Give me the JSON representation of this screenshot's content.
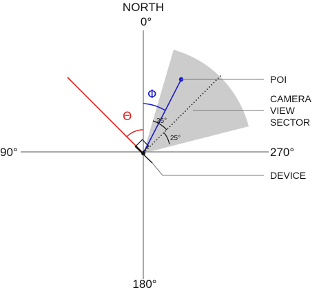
{
  "labels": {
    "north": "NORTH",
    "deg0": "0°",
    "deg90": "90°",
    "deg180": "180°",
    "deg270": "270°",
    "poi": "POI",
    "camera_view_sector": [
      "CAMERA",
      "VIEW",
      "SECTOR"
    ],
    "device": "DEVICE",
    "theta": "Θ",
    "phi": "Φ",
    "angle_a": "25°",
    "angle_b": "25°"
  },
  "colors": {
    "axis": "#8c8c8c",
    "sector": "#cccccc",
    "theta": "#e02020",
    "phi": "#1a1acc",
    "ink": "#111111",
    "leader": "#777777"
  }
}
